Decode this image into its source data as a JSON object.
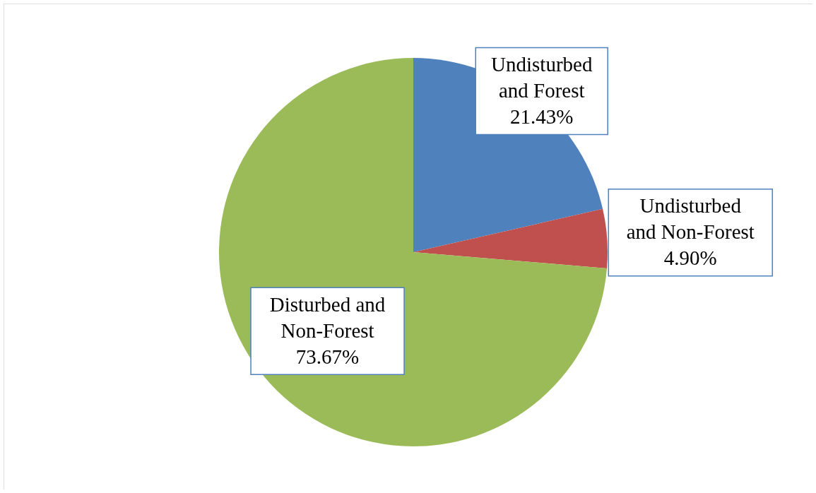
{
  "chart_data": {
    "type": "pie",
    "categories": [
      "Undisturbed and Forest",
      "Undisturbed and Non-Forest",
      "Disturbed and Non-Forest"
    ],
    "values": [
      21.43,
      4.9,
      73.67
    ],
    "colors": [
      "#4f81bd",
      "#c0504d",
      "#9bbb59"
    ],
    "value_labels": [
      "21.43%",
      "4.90%",
      "73.67%"
    ]
  }
}
